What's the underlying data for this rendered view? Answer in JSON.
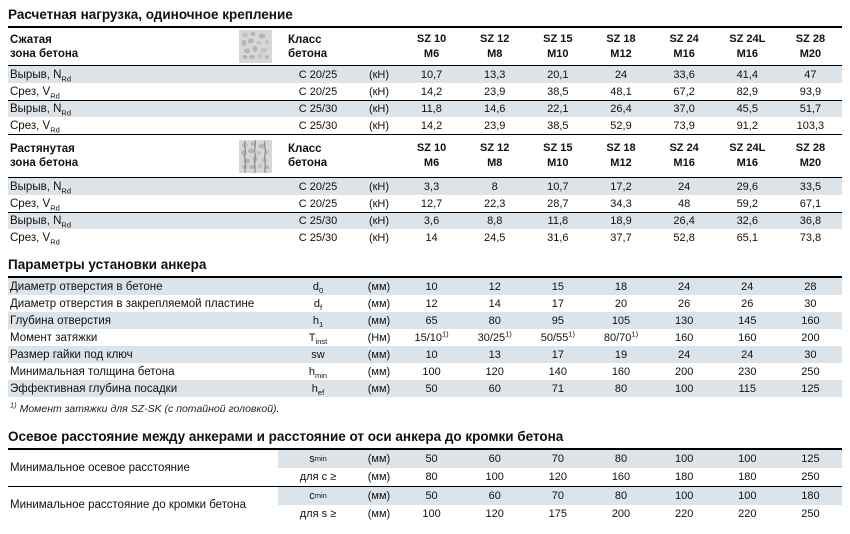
{
  "palette": {
    "shade": "#dce3e9",
    "rule": "#000000",
    "text": "#111111",
    "icon_bg": "#d7d7d7",
    "icon_blob": "#b5b5b5",
    "icon_crack": "#8a8a8a"
  },
  "products": [
    {
      "model": "SZ 10",
      "thread": "M6"
    },
    {
      "model": "SZ 12",
      "thread": "M8"
    },
    {
      "model": "SZ 15",
      "thread": "M10"
    },
    {
      "model": "SZ 18",
      "thread": "M12"
    },
    {
      "model": "SZ 24",
      "thread": "M16"
    },
    {
      "model": "SZ 24L",
      "thread": "M16"
    },
    {
      "model": "SZ 28",
      "thread": "M20"
    }
  ],
  "load_section": {
    "title": "Расчетная нагрузка, одиночное крепление",
    "class_header": [
      "Класс",
      "бетона"
    ],
    "tables": [
      {
        "zone": [
          "Сжатая",
          "зона бетона"
        ],
        "icon": "concrete-uncracked-icon",
        "rows": [
          {
            "label": "Вырыв, N",
            "label_sub": "Rd",
            "concrete_class": "C 20/25",
            "unit": "(кН)",
            "shaded": true,
            "values": [
              "10,7",
              "13,3",
              "20,1",
              "24",
              "33,6",
              "41,4",
              "47"
            ]
          },
          {
            "label": "Срез, V",
            "label_sub": "Rd",
            "concrete_class": "C 20/25",
            "unit": "(кН)",
            "shaded": false,
            "values": [
              "14,2",
              "23,9",
              "38,5",
              "48,1",
              "67,2",
              "82,9",
              "93,9"
            ]
          },
          {
            "label": "Вырыв, N",
            "label_sub": "Rd",
            "concrete_class": "C 25/30",
            "unit": "(кН)",
            "shaded": true,
            "values": [
              "11,8",
              "14,6",
              "22,1",
              "26,4",
              "37,0",
              "45,5",
              "51,7"
            ]
          },
          {
            "label": "Срез, V",
            "label_sub": "Rd",
            "concrete_class": "C 25/30",
            "unit": "(кН)",
            "shaded": false,
            "values": [
              "14,2",
              "23,9",
              "38,5",
              "52,9",
              "73,9",
              "91,2",
              "103,3"
            ]
          }
        ]
      },
      {
        "zone": [
          "Растянутая",
          "зона бетона"
        ],
        "icon": "concrete-cracked-icon",
        "rows": [
          {
            "label": "Вырыв, N",
            "label_sub": "Rd",
            "concrete_class": "C 20/25",
            "unit": "(кН)",
            "shaded": true,
            "values": [
              "3,3",
              "8",
              "10,7",
              "17,2",
              "24",
              "29,6",
              "33,5"
            ]
          },
          {
            "label": "Срез, V",
            "label_sub": "Rd",
            "concrete_class": "C 20/25",
            "unit": "(кН)",
            "shaded": false,
            "values": [
              "12,7",
              "22,3",
              "28,7",
              "34,3",
              "48",
              "59,2",
              "67,1"
            ]
          },
          {
            "label": "Вырыв, N",
            "label_sub": "Rd",
            "concrete_class": "C 25/30",
            "unit": "(кН)",
            "shaded": true,
            "values": [
              "3,6",
              "8,8",
              "11,8",
              "18,9",
              "26,4",
              "32,6",
              "36,8"
            ]
          },
          {
            "label": "Срез, V",
            "label_sub": "Rd",
            "concrete_class": "C 25/30",
            "unit": "(кН)",
            "shaded": false,
            "values": [
              "14",
              "24,5",
              "31,6",
              "37,7",
              "52,8",
              "65,1",
              "73,8"
            ]
          }
        ]
      }
    ]
  },
  "install_section": {
    "title": "Параметры установки анкера",
    "rows": [
      {
        "label": "Диаметр отверстия в бетоне",
        "symbol": "d",
        "symbol_sub": "0",
        "unit": "(мм)",
        "shaded": true,
        "values": [
          "10",
          "12",
          "15",
          "18",
          "24",
          "24",
          "28"
        ]
      },
      {
        "label": "Диаметр отверстия в закрепляемой пластине",
        "symbol": "d",
        "symbol_sub": "f",
        "unit": "(мм)",
        "shaded": false,
        "values": [
          "12",
          "14",
          "17",
          "20",
          "26",
          "26",
          "30"
        ]
      },
      {
        "label": "Глубина отверстия",
        "symbol": "h",
        "symbol_sub": "1",
        "unit": "(мм)",
        "shaded": true,
        "values": [
          "65",
          "80",
          "95",
          "105",
          "130",
          "145",
          "160"
        ]
      },
      {
        "label": "Момент затяжки",
        "symbol": "T",
        "symbol_sub": "inst",
        "unit": "(Нм)",
        "shaded": false,
        "values": [
          "15/10^1)",
          "30/25^1)",
          "50/55^1)",
          "80/70^1)",
          "160",
          "160",
          "200"
        ]
      },
      {
        "label": "Размер гайки под ключ",
        "symbol": "sw",
        "symbol_sub": "",
        "unit": "(мм)",
        "shaded": true,
        "values": [
          "10",
          "13",
          "17",
          "19",
          "24",
          "24",
          "30"
        ]
      },
      {
        "label": "Минимальная толщина бетона",
        "symbol": "h",
        "symbol_sub": "min",
        "unit": "(мм)",
        "shaded": false,
        "values": [
          "100",
          "120",
          "140",
          "160",
          "200",
          "230",
          "250"
        ]
      },
      {
        "label": "Эффективная глубина посадки",
        "symbol": "h",
        "symbol_sub": "ef",
        "unit": "(мм)",
        "shaded": true,
        "values": [
          "50",
          "60",
          "71",
          "80",
          "100",
          "115",
          "125"
        ]
      }
    ],
    "footnote_marker": "1)",
    "footnote_text": "Момент затяжки для SZ-SK (с потайной головкой)."
  },
  "spacing_section": {
    "title": "Осевое расстояние между анкерами и расстояние от оси анкера до кромки бетона",
    "groups": [
      {
        "label": "Минимальное осевое расстояние",
        "rows": [
          {
            "symbol": "s",
            "symbol_sub": "min",
            "unit": "(мм)",
            "shaded": true,
            "values": [
              "50",
              "60",
              "70",
              "80",
              "100",
              "100",
              "125"
            ]
          },
          {
            "symbol": "для c ≥",
            "symbol_sub": "",
            "unit": "(мм)",
            "shaded": false,
            "values": [
              "80",
              "100",
              "120",
              "160",
              "180",
              "180",
              "250"
            ]
          }
        ]
      },
      {
        "label": "Минимальное расстояние до кромки бетона",
        "rows": [
          {
            "symbol": "c",
            "symbol_sub": "min",
            "unit": "(мм)",
            "shaded": true,
            "values": [
              "50",
              "60",
              "70",
              "80",
              "100",
              "100",
              "180"
            ]
          },
          {
            "symbol": "для s ≥",
            "symbol_sub": "",
            "unit": "(мм)",
            "shaded": false,
            "values": [
              "100",
              "120",
              "175",
              "200",
              "220",
              "220",
              "250"
            ]
          }
        ]
      }
    ]
  }
}
